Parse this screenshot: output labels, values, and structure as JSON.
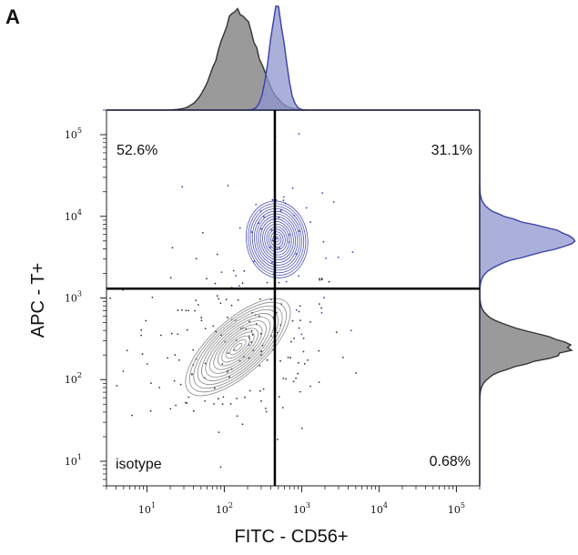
{
  "panel_label": "A",
  "chart_data": {
    "type": "scatter",
    "subtype": "flow-cytometry contour plot with marginal histograms",
    "xlabel": "FITC - CD56+",
    "ylabel": "APC - T+",
    "x_scale": "log",
    "y_scale": "log",
    "xlim": [
      3,
      200000
    ],
    "ylim": [
      5,
      200000
    ],
    "x_ticks": [
      {
        "base": "10",
        "exp": "1",
        "value": 10
      },
      {
        "base": "10",
        "exp": "2",
        "value": 100
      },
      {
        "base": "10",
        "exp": "3",
        "value": 1000
      },
      {
        "base": "10",
        "exp": "4",
        "value": 10000
      },
      {
        "base": "10",
        "exp": "5",
        "value": 100000
      }
    ],
    "y_ticks": [
      {
        "base": "10",
        "exp": "1",
        "value": 10
      },
      {
        "base": "10",
        "exp": "2",
        "value": 100
      },
      {
        "base": "10",
        "exp": "3",
        "value": 1000
      },
      {
        "base": "10",
        "exp": "4",
        "value": 10000
      },
      {
        "base": "10",
        "exp": "5",
        "value": 100000
      }
    ],
    "gates": {
      "x": 450,
      "y": 1300
    },
    "quadrants": {
      "top_left": "52.6%",
      "top_right": "31.1%",
      "bottom_right": "0.68%",
      "bottom_left_label": "isotype"
    },
    "series": [
      {
        "role": "isotype",
        "color": "#7a7a7a",
        "fill": "#8f8f8f",
        "center": [
          150,
          250
        ],
        "spread": [
          0.45,
          0.35
        ]
      },
      {
        "role": "stained",
        "color": "#3a3fa8",
        "fill": "#8e96cc",
        "center": [
          480,
          5200
        ],
        "spread": [
          0.22,
          0.35
        ]
      }
    ]
  }
}
